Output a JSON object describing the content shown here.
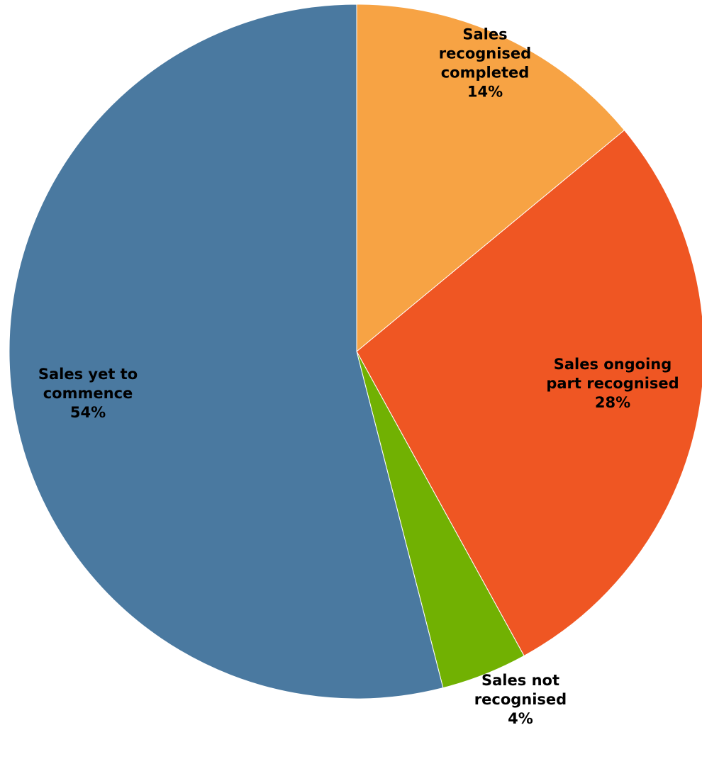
{
  "chart_data": {
    "type": "pie",
    "start_angle_deg": 0,
    "direction": "clockwise",
    "slices": [
      {
        "label": [
          "Sales",
          "recognised",
          "completed"
        ],
        "value": 14,
        "value_label": "14%",
        "color": "#F7A344"
      },
      {
        "label": [
          "Sales ongoing",
          "part recognised"
        ],
        "value": 28,
        "value_label": "28%",
        "color": "#EF5623"
      },
      {
        "label": [
          "Sales not",
          "recognised"
        ],
        "value": 4,
        "value_label": "4%",
        "color": "#71B102"
      },
      {
        "label": [
          "Sales yet to",
          "commence"
        ],
        "value": 54,
        "value_label": "54%",
        "color": "#4A79A0"
      }
    ]
  }
}
